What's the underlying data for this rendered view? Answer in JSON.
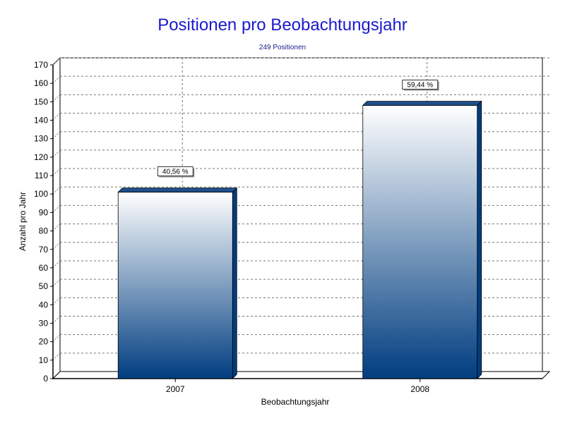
{
  "chart_data": {
    "type": "bar",
    "title": "Positionen pro Beobachtungsjahr",
    "subtitle": "249 Positionen",
    "xlabel": "Beobachtungsjahr",
    "ylabel": "Anzahl pro Jahr",
    "categories": [
      "2007",
      "2008"
    ],
    "values": [
      101,
      148
    ],
    "data_labels": [
      "40,56 %",
      "59,44 %"
    ],
    "ylim": [
      0,
      170
    ],
    "yticks": [
      0,
      10,
      20,
      30,
      40,
      50,
      60,
      70,
      80,
      90,
      100,
      110,
      120,
      130,
      140,
      150,
      160,
      170
    ],
    "grid": true,
    "legend": "none",
    "bar_color_top": "#ffffff",
    "bar_color_bottom": "#003d80",
    "bar_cap_color": "#1f4f8c"
  }
}
